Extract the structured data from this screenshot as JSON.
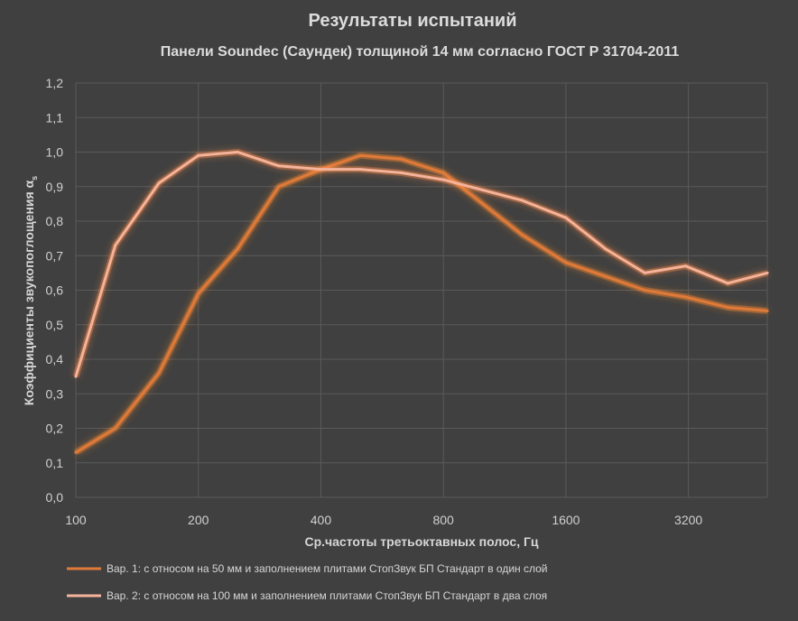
{
  "chart_data": {
    "type": "line",
    "title": "Результаты испытаний",
    "subtitle": "Панели Soundec (Саундек) толщиной 14 мм согласно ГОСТ Р 31704-2011",
    "xlabel": "Ср.частоты третьоктавных полос, Гц",
    "ylabel": "Коэффициенты звукопоглощения α",
    "ylabel_subscript": "s",
    "x_scale": "log2",
    "xlim": [
      100,
      5000
    ],
    "ylim": [
      0,
      1.2
    ],
    "x_ticks": [
      {
        "value": 100,
        "label": "100"
      },
      {
        "value": 200,
        "label": "200"
      },
      {
        "value": 400,
        "label": "400"
      },
      {
        "value": 800,
        "label": "800"
      },
      {
        "value": 1600,
        "label": "1600"
      },
      {
        "value": 3200,
        "label": "3200"
      }
    ],
    "y_ticks": [
      {
        "value": 0.0,
        "label": "0,0"
      },
      {
        "value": 0.1,
        "label": "0,1"
      },
      {
        "value": 0.2,
        "label": "0,2"
      },
      {
        "value": 0.3,
        "label": "0,3"
      },
      {
        "value": 0.4,
        "label": "0,4"
      },
      {
        "value": 0.5,
        "label": "0,5"
      },
      {
        "value": 0.6,
        "label": "0,6"
      },
      {
        "value": 0.7,
        "label": "0,7"
      },
      {
        "value": 0.8,
        "label": "0,8"
      },
      {
        "value": 0.9,
        "label": "0,9"
      },
      {
        "value": 1.0,
        "label": "1,0"
      },
      {
        "value": 1.1,
        "label": "1,1"
      },
      {
        "value": 1.2,
        "label": "1,2"
      }
    ],
    "x": [
      100,
      125,
      160,
      200,
      250,
      315,
      400,
      500,
      630,
      800,
      1000,
      1250,
      1600,
      2000,
      2500,
      3150,
      4000,
      5000
    ],
    "series": [
      {
        "name": "Вар. 1: с относом на 50 мм и заполнением плитами СтопЗвук БП Стандарт в один слой",
        "color": "#e07a3a",
        "glow": "#ff8c2a",
        "values": [
          0.13,
          0.2,
          0.36,
          0.59,
          0.72,
          0.9,
          0.95,
          0.99,
          0.98,
          0.94,
          0.85,
          0.76,
          0.68,
          0.64,
          0.6,
          0.58,
          0.55,
          0.54
        ]
      },
      {
        "name": "Вар. 2: с относом на 100 мм и заполнением плитами СтопЗвук БП Стандарт в два слоя",
        "color": "#f4b39a",
        "glow": "#ff8c4a",
        "values": [
          0.35,
          0.73,
          0.91,
          0.99,
          1.0,
          0.96,
          0.95,
          0.95,
          0.94,
          0.92,
          0.89,
          0.86,
          0.81,
          0.72,
          0.65,
          0.67,
          0.62,
          0.65
        ]
      }
    ],
    "grid": true,
    "legend_position": "bottom"
  }
}
